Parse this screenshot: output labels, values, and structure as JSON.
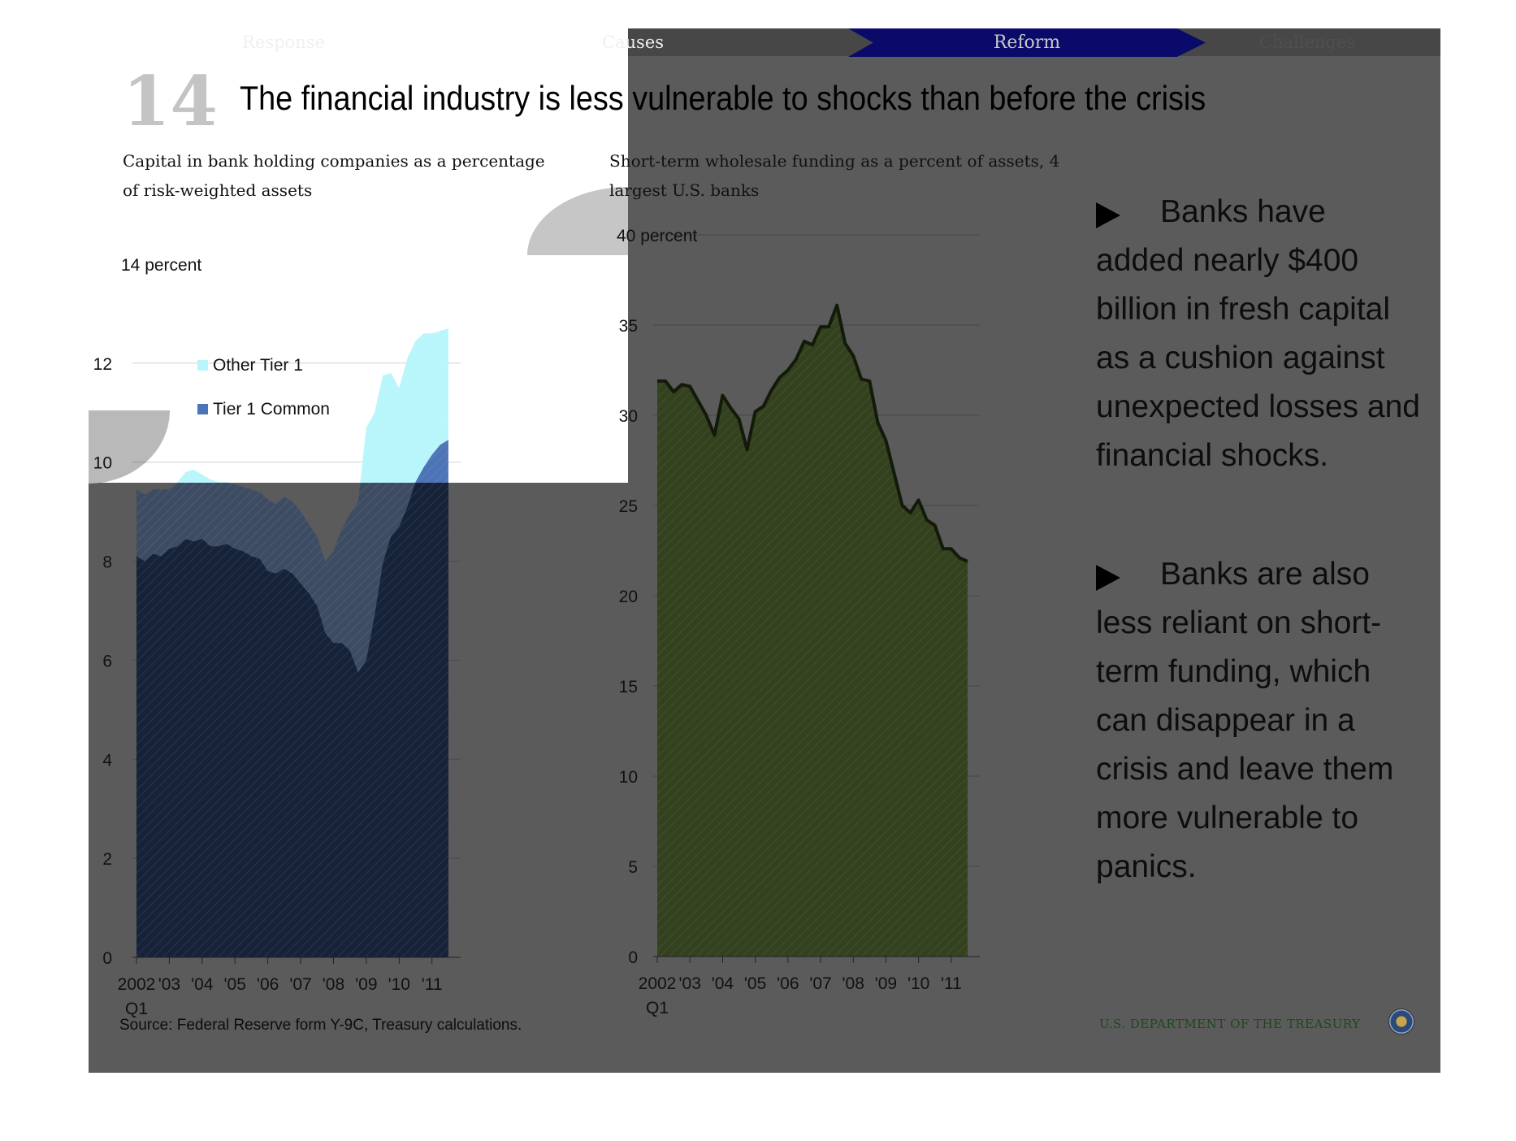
{
  "nav": {
    "tabs": [
      "Response",
      "Causes",
      "Reform",
      "Challenges"
    ],
    "active": "Reform"
  },
  "slide": {
    "number": "14",
    "title": "The financial industry is less vulnerable to shocks than before the crisis"
  },
  "bullets": [
    "Banks have added nearly  $400 billion in fresh capital as a cushion against unexpected losses and financial shocks.",
    "Banks are also less reliant on short-term funding, which can disappear in a crisis and leave them more vulnerable to panics."
  ],
  "footer": {
    "source": "Source: Federal Reserve form Y-9C, Treasury calculations.",
    "agency": "U.S. DEPARTMENT OF THE TREASURY"
  },
  "colors": {
    "slide_bg": "#5b5b5b",
    "nav_active": "#0a0a6a",
    "tier1_common": "#152238",
    "other_tier1": "#b8f6fb",
    "other_tier1_dim": "#3d4c63",
    "wholesale_fill": "#33411e",
    "wholesale_line": "#141a0a"
  },
  "chart_data": [
    {
      "type": "area",
      "title": "Capital in bank holding companies as a percentage of risk-weighted assets",
      "y_unit_label": "14 percent",
      "ylim": [
        0,
        14
      ],
      "yticks": [
        0,
        2,
        4,
        6,
        8,
        10,
        12
      ],
      "ytick_labels": [
        "0",
        "2",
        "4",
        "6",
        "8",
        "10",
        "12"
      ],
      "x_tick_labels": [
        "2002",
        "'03",
        "'04",
        "'05",
        "'06",
        "'07",
        "'08",
        "'09",
        "'10",
        "'11"
      ],
      "x_tick_sublabel": "Q1",
      "x_start": 2002.0,
      "x_end": 2011.75,
      "stacked": true,
      "legend": [
        "Other Tier 1",
        "Tier 1 Common"
      ],
      "x": [
        2002.0,
        2002.25,
        2002.5,
        2002.75,
        2003.0,
        2003.25,
        2003.5,
        2003.75,
        2004.0,
        2004.25,
        2004.5,
        2004.75,
        2005.0,
        2005.25,
        2005.5,
        2005.75,
        2006.0,
        2006.25,
        2006.5,
        2006.75,
        2007.0,
        2007.25,
        2007.5,
        2007.75,
        2008.0,
        2008.25,
        2008.5,
        2008.75,
        2009.0,
        2009.25,
        2009.5,
        2009.75,
        2010.0,
        2010.25,
        2010.5,
        2010.75,
        2011.0,
        2011.25,
        2011.5
      ],
      "series": [
        {
          "name": "Tier 1 Common",
          "values": [
            8.1,
            8.0,
            8.15,
            8.1,
            8.25,
            8.3,
            8.45,
            8.4,
            8.45,
            8.3,
            8.3,
            8.35,
            8.25,
            8.2,
            8.1,
            8.05,
            7.8,
            7.75,
            7.85,
            7.75,
            7.55,
            7.35,
            7.1,
            6.55,
            6.35,
            6.35,
            6.2,
            5.75,
            6.0,
            6.9,
            7.95,
            8.5,
            8.7,
            9.1,
            9.6,
            9.9,
            10.15,
            10.35,
            10.45
          ]
        },
        {
          "name": "Other Tier 1",
          "values": [
            1.35,
            1.35,
            1.3,
            1.35,
            1.2,
            1.3,
            1.35,
            1.45,
            1.3,
            1.35,
            1.3,
            1.25,
            1.3,
            1.3,
            1.35,
            1.35,
            1.45,
            1.4,
            1.45,
            1.45,
            1.45,
            1.4,
            1.4,
            1.45,
            1.85,
            2.3,
            2.75,
            3.45,
            4.7,
            4.1,
            3.8,
            3.3,
            2.8,
            3.0,
            2.85,
            2.7,
            2.45,
            2.3,
            2.25
          ]
        }
      ]
    },
    {
      "type": "area",
      "title": "Short-term wholesale funding as a percent of assets, 4 largest U.S. banks",
      "y_unit_label": "40 percent",
      "ylim": [
        0,
        40
      ],
      "yticks": [
        0,
        5,
        10,
        15,
        20,
        25,
        30,
        35
      ],
      "ytick_labels": [
        "0",
        "5",
        "10",
        "15",
        "20",
        "25",
        "30",
        "35"
      ],
      "x_tick_labels": [
        "2002",
        "'03",
        "'04",
        "'05",
        "'06",
        "'07",
        "'08",
        "'09",
        "'10",
        "'11"
      ],
      "x_tick_sublabel": "Q1",
      "x_start": 2002.0,
      "x_end": 2011.75,
      "x": [
        2002.0,
        2002.25,
        2002.5,
        2002.75,
        2003.0,
        2003.25,
        2003.5,
        2003.75,
        2004.0,
        2004.25,
        2004.5,
        2004.75,
        2005.0,
        2005.25,
        2005.5,
        2005.75,
        2006.0,
        2006.25,
        2006.5,
        2006.75,
        2007.0,
        2007.25,
        2007.5,
        2007.75,
        2008.0,
        2008.25,
        2008.5,
        2008.75,
        2009.0,
        2009.25,
        2009.5,
        2009.75,
        2010.0,
        2010.25,
        2010.5,
        2010.75,
        2011.0,
        2011.25,
        2011.5
      ],
      "series": [
        {
          "name": "",
          "values": [
            31.9,
            31.9,
            31.3,
            31.7,
            31.6,
            30.8,
            30.0,
            28.9,
            31.1,
            30.4,
            29.8,
            28.1,
            30.2,
            30.5,
            31.4,
            32.1,
            32.5,
            33.1,
            34.1,
            33.9,
            34.9,
            34.9,
            36.1,
            34.0,
            33.3,
            32.0,
            31.9,
            29.6,
            28.6,
            26.8,
            25.0,
            24.6,
            25.3,
            24.2,
            23.9,
            22.6,
            22.6,
            22.1,
            21.9
          ]
        }
      ]
    }
  ]
}
